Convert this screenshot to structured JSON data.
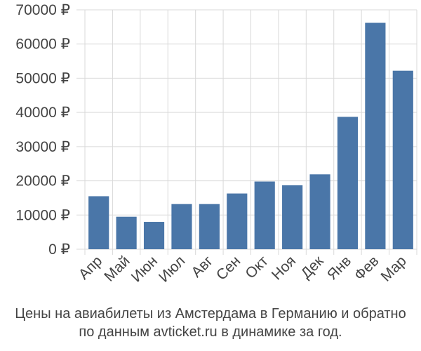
{
  "caption": {
    "line1": "Цены на авиабилеты из Амстердама в Германию и обратно",
    "line2": "по данным avticket.ru в динамике за год."
  },
  "colors": {
    "bar": "#4a76a8",
    "grid": "#d9d9d9",
    "axis_text": "#444444"
  },
  "chart_data": {
    "type": "bar",
    "categories": [
      "Апр",
      "Май",
      "Июн",
      "Июл",
      "Авг",
      "Сен",
      "Окт",
      "Ноя",
      "Дек",
      "Янв",
      "Фев",
      "Мар"
    ],
    "series": [
      {
        "values": [
          15500,
          9500,
          8000,
          13200,
          13200,
          16300,
          19800,
          18700,
          21900,
          38700,
          66200,
          52200
        ]
      }
    ],
    "yticks": [
      "0 ₽",
      "10000 ₽",
      "20000 ₽",
      "30000 ₽",
      "40000 ₽",
      "50000 ₽",
      "60000 ₽",
      "70000 ₽"
    ],
    "ytick_values": [
      0,
      10000,
      20000,
      30000,
      40000,
      50000,
      60000,
      70000
    ],
    "ylim": [
      0,
      70000
    ],
    "grid": true,
    "title": "",
    "xlabel": "",
    "ylabel": ""
  }
}
